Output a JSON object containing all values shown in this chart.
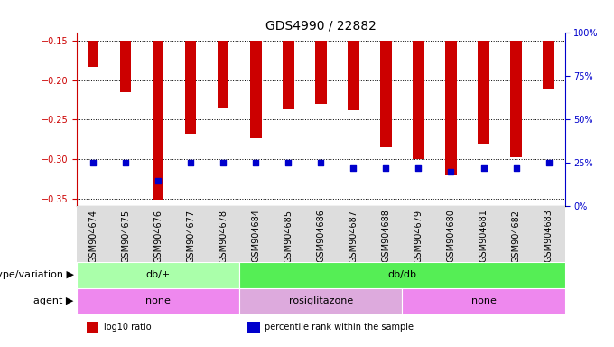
{
  "title": "GDS4990 / 22882",
  "samples": [
    "GSM904674",
    "GSM904675",
    "GSM904676",
    "GSM904677",
    "GSM904678",
    "GSM904684",
    "GSM904685",
    "GSM904686",
    "GSM904687",
    "GSM904688",
    "GSM904679",
    "GSM904680",
    "GSM904681",
    "GSM904682",
    "GSM904683"
  ],
  "log10_ratio": [
    -0.183,
    -0.215,
    -0.352,
    -0.268,
    -0.235,
    -0.274,
    -0.237,
    -0.23,
    -0.238,
    -0.285,
    -0.3,
    -0.32,
    -0.28,
    -0.298,
    -0.21
  ],
  "percentile_rank": [
    25,
    25,
    15,
    25,
    25,
    25,
    25,
    25,
    22,
    22,
    22,
    20,
    22,
    22,
    25
  ],
  "ylim_left": [
    -0.36,
    -0.14
  ],
  "ylim_right": [
    0,
    100
  ],
  "yticks_left": [
    -0.35,
    -0.3,
    -0.25,
    -0.2,
    -0.15
  ],
  "yticks_right": [
    0,
    25,
    50,
    75,
    100
  ],
  "bar_color": "#cc0000",
  "dot_color": "#0000cc",
  "grid_color": "#000000",
  "genotype_groups": [
    {
      "label": "db/+",
      "start": 0,
      "end": 5,
      "color": "#aaffaa"
    },
    {
      "label": "db/db",
      "start": 5,
      "end": 15,
      "color": "#55ee55"
    }
  ],
  "agent_groups": [
    {
      "label": "none",
      "start": 0,
      "end": 5,
      "color": "#ee88ee"
    },
    {
      "label": "rosiglitazone",
      "start": 5,
      "end": 10,
      "color": "#ddaadd"
    },
    {
      "label": "none",
      "start": 10,
      "end": 15,
      "color": "#ee88ee"
    }
  ],
  "legend_items": [
    {
      "color": "#cc0000",
      "label": "log10 ratio"
    },
    {
      "color": "#0000cc",
      "label": "percentile rank within the sample"
    }
  ],
  "genotype_label": "genotype/variation",
  "agent_label": "agent",
  "title_fontsize": 10,
  "tick_fontsize": 7,
  "label_fontsize": 8,
  "bar_width": 0.35
}
